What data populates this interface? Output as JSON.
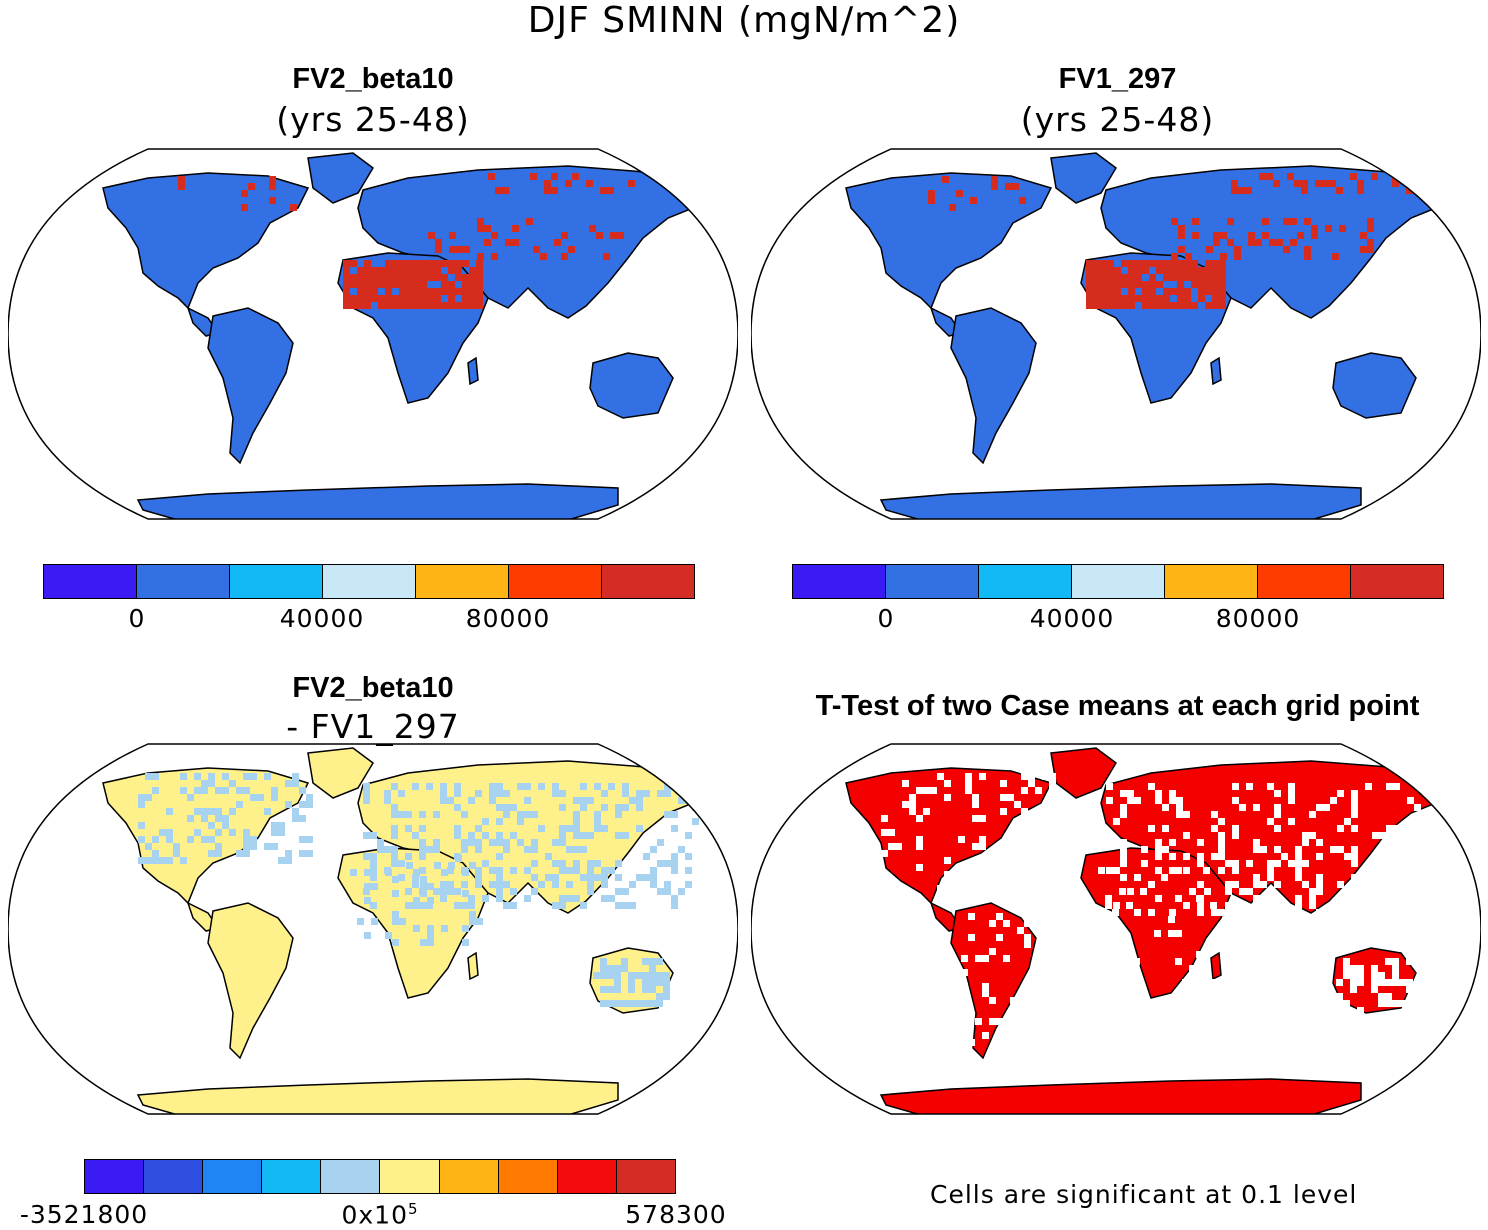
{
  "title": "DJF SMINN (mgN/m^2)",
  "panels": [
    {
      "title": "FV2_beta10",
      "subtitle": "(yrs 25-48)",
      "base_color": "#3370E4",
      "hot_color": "#D62C1E",
      "colorbar": [
        "#3A1BF4",
        "#3370E4",
        "#13B9F4",
        "#C8E7F7",
        "#FEB414",
        "#FE3C00",
        "#D62C26"
      ],
      "tick_labels": [
        "0",
        "40000",
        "80000"
      ]
    },
    {
      "title": "FV1_297",
      "subtitle": "(yrs 25-48)",
      "base_color": "#3370E4",
      "hot_color": "#D62C1E",
      "colorbar": [
        "#3A1BF4",
        "#3370E4",
        "#13B9F4",
        "#C8E7F7",
        "#FEB414",
        "#FE3C00",
        "#D62C26"
      ],
      "tick_labels": [
        "0",
        "40000",
        "80000"
      ]
    },
    {
      "title": "FV2_beta10",
      "subtitle": "- FV1_297",
      "base_color": "#FEF08A",
      "hot_color": "#A8D3F0",
      "colorbar": [
        "#3A1BF4",
        "#2E4EE0",
        "#1F84F4",
        "#13B9F4",
        "#A8D3F0",
        "#FEF08A",
        "#FEB414",
        "#FE7A00",
        "#F40C0C",
        "#D62C26"
      ],
      "tick_labels": [
        "-3521800",
        "0x10",
        "578300"
      ],
      "tick_sup": "5"
    },
    {
      "title": "T-Test of two Case means at each grid point",
      "base_color": "#F40000",
      "hot_color": "#FFFFFF",
      "note": "Cells are significant at 0.1 level"
    }
  ]
}
